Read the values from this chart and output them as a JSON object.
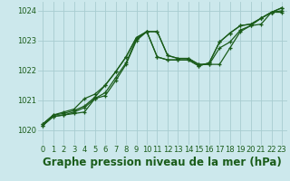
{
  "background_color": "#cce8ec",
  "grid_color": "#a8ccd0",
  "line_color": "#1a5c1a",
  "xlim": [
    -0.5,
    23.5
  ],
  "ylim": [
    1019.5,
    1024.3
  ],
  "yticks": [
    1020,
    1021,
    1022,
    1023,
    1024
  ],
  "xticks": [
    0,
    1,
    2,
    3,
    4,
    5,
    6,
    7,
    8,
    9,
    10,
    11,
    12,
    13,
    14,
    15,
    16,
    17,
    18,
    19,
    20,
    21,
    22,
    23
  ],
  "series": [
    [
      1020.15,
      1020.45,
      1020.5,
      1020.55,
      1020.6,
      1021.05,
      1021.15,
      1021.65,
      1022.2,
      1023.0,
      1023.3,
      1023.3,
      1022.5,
      1022.4,
      1022.4,
      1022.2,
      1022.2,
      1022.2,
      1022.75,
      1023.3,
      1023.5,
      1023.55,
      1023.95,
      1023.95
    ],
    [
      1020.15,
      1020.45,
      1020.5,
      1020.6,
      1020.75,
      1021.05,
      1021.25,
      1021.75,
      1022.25,
      1023.05,
      1023.3,
      1023.3,
      1022.5,
      1022.4,
      1022.4,
      1022.2,
      1022.2,
      1022.75,
      1022.95,
      1023.35,
      1023.5,
      1023.75,
      1023.95,
      1024.0
    ],
    [
      1020.2,
      1020.5,
      1020.55,
      1020.65,
      1020.8,
      1021.1,
      1021.5,
      1021.95,
      1022.45,
      1023.1,
      1023.3,
      1022.45,
      1022.35,
      1022.35,
      1022.35,
      1022.15,
      1022.25,
      1022.95,
      1023.25,
      1023.5,
      1023.55,
      1023.75,
      1023.95,
      1024.1
    ],
    [
      1020.2,
      1020.5,
      1020.6,
      1020.7,
      1021.05,
      1021.2,
      1021.5,
      1021.95,
      1022.45,
      1023.1,
      1023.3,
      1022.45,
      1022.35,
      1022.35,
      1022.35,
      1022.15,
      1022.25,
      1022.95,
      1023.25,
      1023.5,
      1023.55,
      1023.75,
      1023.95,
      1024.1
    ]
  ],
  "xlabel": "Graphe pression niveau de la mer (hPa)",
  "marker": "+",
  "markersize": 3.5,
  "linewidth": 0.9,
  "markeredgewidth": 0.9,
  "xlabel_fontsize": 8.5,
  "tick_fontsize": 6.0
}
